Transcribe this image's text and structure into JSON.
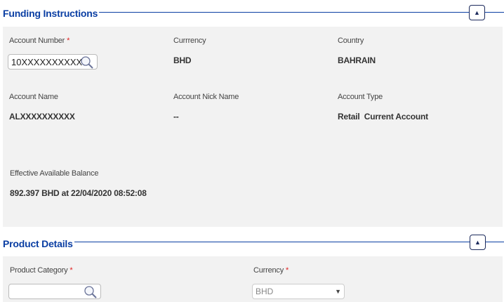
{
  "funding": {
    "title": "Funding Instructions",
    "toggle_icon": "triangle-up",
    "fields": {
      "account_number": {
        "label": "Account Number",
        "required": "*",
        "value": "10XXXXXXXXXX"
      },
      "currency": {
        "label": "Currrency",
        "value": "BHD"
      },
      "country": {
        "label": "Country",
        "value": "BAHRAIN"
      },
      "account_name": {
        "label": "Account Name",
        "value": "ALXXXXXXXXXX"
      },
      "nick_name": {
        "label": "Account Nick Name",
        "value": "--"
      },
      "account_type": {
        "label": "Account Type",
        "value": "Retail  Current Account"
      },
      "balance": {
        "label": "Effective Available Balance",
        "value": "892.397 BHD at 22/04/2020 08:52:08"
      }
    }
  },
  "product": {
    "title": "Product Details",
    "toggle_icon": "triangle-up",
    "category": {
      "label": "Product Category",
      "required": "*",
      "value": ""
    },
    "currency": {
      "label": "Currency",
      "required": "*",
      "value": "BHD"
    }
  },
  "colors": {
    "accent": "#0a3ea3",
    "panel": "#f2f2f2",
    "required": "#e02020"
  }
}
